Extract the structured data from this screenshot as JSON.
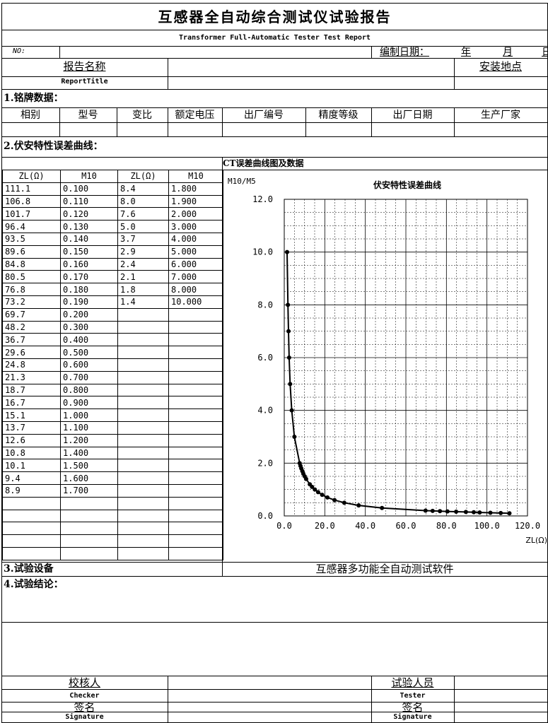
{
  "header": {
    "title": "互感器全自动综合测试仪试验报告",
    "subtitle": "Transformer Full-Automatic Tester Test Report",
    "no_label": "NO:",
    "date_label": "编制日期：",
    "year": "年",
    "month": "月",
    "day": "日"
  },
  "report": {
    "name_label": "报告名称",
    "name_en": "ReportTitle",
    "install_label": "安装地点"
  },
  "nameplate": {
    "section_title": "1.铭牌数据：",
    "columns": [
      "相别",
      "型号",
      "变比",
      "额定电压",
      "出厂编号",
      "精度等级",
      "出厂日期",
      "生产厂家"
    ]
  },
  "curve": {
    "section_title": "2.伏安特性误差曲线：",
    "chart_caption": "CT误差曲线图及数据",
    "col_zl": "ZL(Ω)",
    "col_m10": "M10"
  },
  "table_left": [
    [
      "111.1",
      "0.100"
    ],
    [
      "106.8",
      "0.110"
    ],
    [
      "101.7",
      "0.120"
    ],
    [
      "96.4",
      "0.130"
    ],
    [
      "93.5",
      "0.140"
    ],
    [
      "89.6",
      "0.150"
    ],
    [
      "84.8",
      "0.160"
    ],
    [
      "80.5",
      "0.170"
    ],
    [
      "76.8",
      "0.180"
    ],
    [
      "73.2",
      "0.190"
    ],
    [
      "69.7",
      "0.200"
    ],
    [
      "48.2",
      "0.300"
    ],
    [
      "36.7",
      "0.400"
    ],
    [
      "29.6",
      "0.500"
    ],
    [
      "24.8",
      "0.600"
    ],
    [
      "21.3",
      "0.700"
    ],
    [
      "18.7",
      "0.800"
    ],
    [
      "16.7",
      "0.900"
    ],
    [
      "15.1",
      "1.000"
    ],
    [
      "13.7",
      "1.100"
    ],
    [
      "12.6",
      "1.200"
    ],
    [
      "10.8",
      "1.400"
    ],
    [
      "10.1",
      "1.500"
    ],
    [
      "9.4",
      "1.600"
    ],
    [
      "8.9",
      "1.700"
    ]
  ],
  "table_right": [
    [
      "8.4",
      "1.800"
    ],
    [
      "8.0",
      "1.900"
    ],
    [
      "7.6",
      "2.000"
    ],
    [
      "5.0",
      "3.000"
    ],
    [
      "3.7",
      "4.000"
    ],
    [
      "2.9",
      "5.000"
    ],
    [
      "2.4",
      "6.000"
    ],
    [
      "2.1",
      "7.000"
    ],
    [
      "1.8",
      "8.000"
    ],
    [
      "1.4",
      "10.000"
    ]
  ],
  "chart_data": {
    "type": "line",
    "title": "伏安特性误差曲线",
    "ylabel": "M10/M5",
    "xlabel": "ZL(Ω)",
    "xlim": [
      0,
      120
    ],
    "ylim": [
      0,
      12
    ],
    "xticks": [
      "0.0",
      "20.0",
      "40.0",
      "60.0",
      "80.0",
      "100.0",
      "120.0"
    ],
    "yticks": [
      "0.0",
      "2.0",
      "4.0",
      "6.0",
      "8.0",
      "10.0",
      "12.0"
    ],
    "grid": true,
    "series": [
      {
        "points": [
          [
            111.1,
            0.1
          ],
          [
            106.8,
            0.11
          ],
          [
            101.7,
            0.12
          ],
          [
            96.4,
            0.13
          ],
          [
            93.5,
            0.14
          ],
          [
            89.6,
            0.15
          ],
          [
            84.8,
            0.16
          ],
          [
            80.5,
            0.17
          ],
          [
            76.8,
            0.18
          ],
          [
            73.2,
            0.19
          ],
          [
            69.7,
            0.2
          ],
          [
            48.2,
            0.3
          ],
          [
            36.7,
            0.4
          ],
          [
            29.6,
            0.5
          ],
          [
            24.8,
            0.6
          ],
          [
            21.3,
            0.7
          ],
          [
            18.7,
            0.8
          ],
          [
            16.7,
            0.9
          ],
          [
            15.1,
            1.0
          ],
          [
            13.7,
            1.1
          ],
          [
            12.6,
            1.2
          ],
          [
            10.8,
            1.4
          ],
          [
            10.1,
            1.5
          ],
          [
            9.4,
            1.6
          ],
          [
            8.9,
            1.7
          ],
          [
            8.4,
            1.8
          ],
          [
            8.0,
            1.9
          ],
          [
            7.6,
            2.0
          ],
          [
            5.0,
            3.0
          ],
          [
            3.7,
            4.0
          ],
          [
            2.9,
            5.0
          ],
          [
            2.4,
            6.0
          ],
          [
            2.1,
            7.0
          ],
          [
            1.8,
            8.0
          ],
          [
            1.4,
            10.0
          ]
        ]
      }
    ]
  },
  "footer": {
    "software_name": "互感器多功能全自动测试软件",
    "equipment_title": "3.试验设备",
    "conclusion_title": "4.试验结论：",
    "checker_label": "校核人",
    "checker_en": "Checker",
    "sign_label": "签名",
    "sign_en": "Signature",
    "tester_label": "试验人员",
    "tester_en": "Tester",
    "sign_label2": "签名",
    "sign_en2": "Signature"
  }
}
